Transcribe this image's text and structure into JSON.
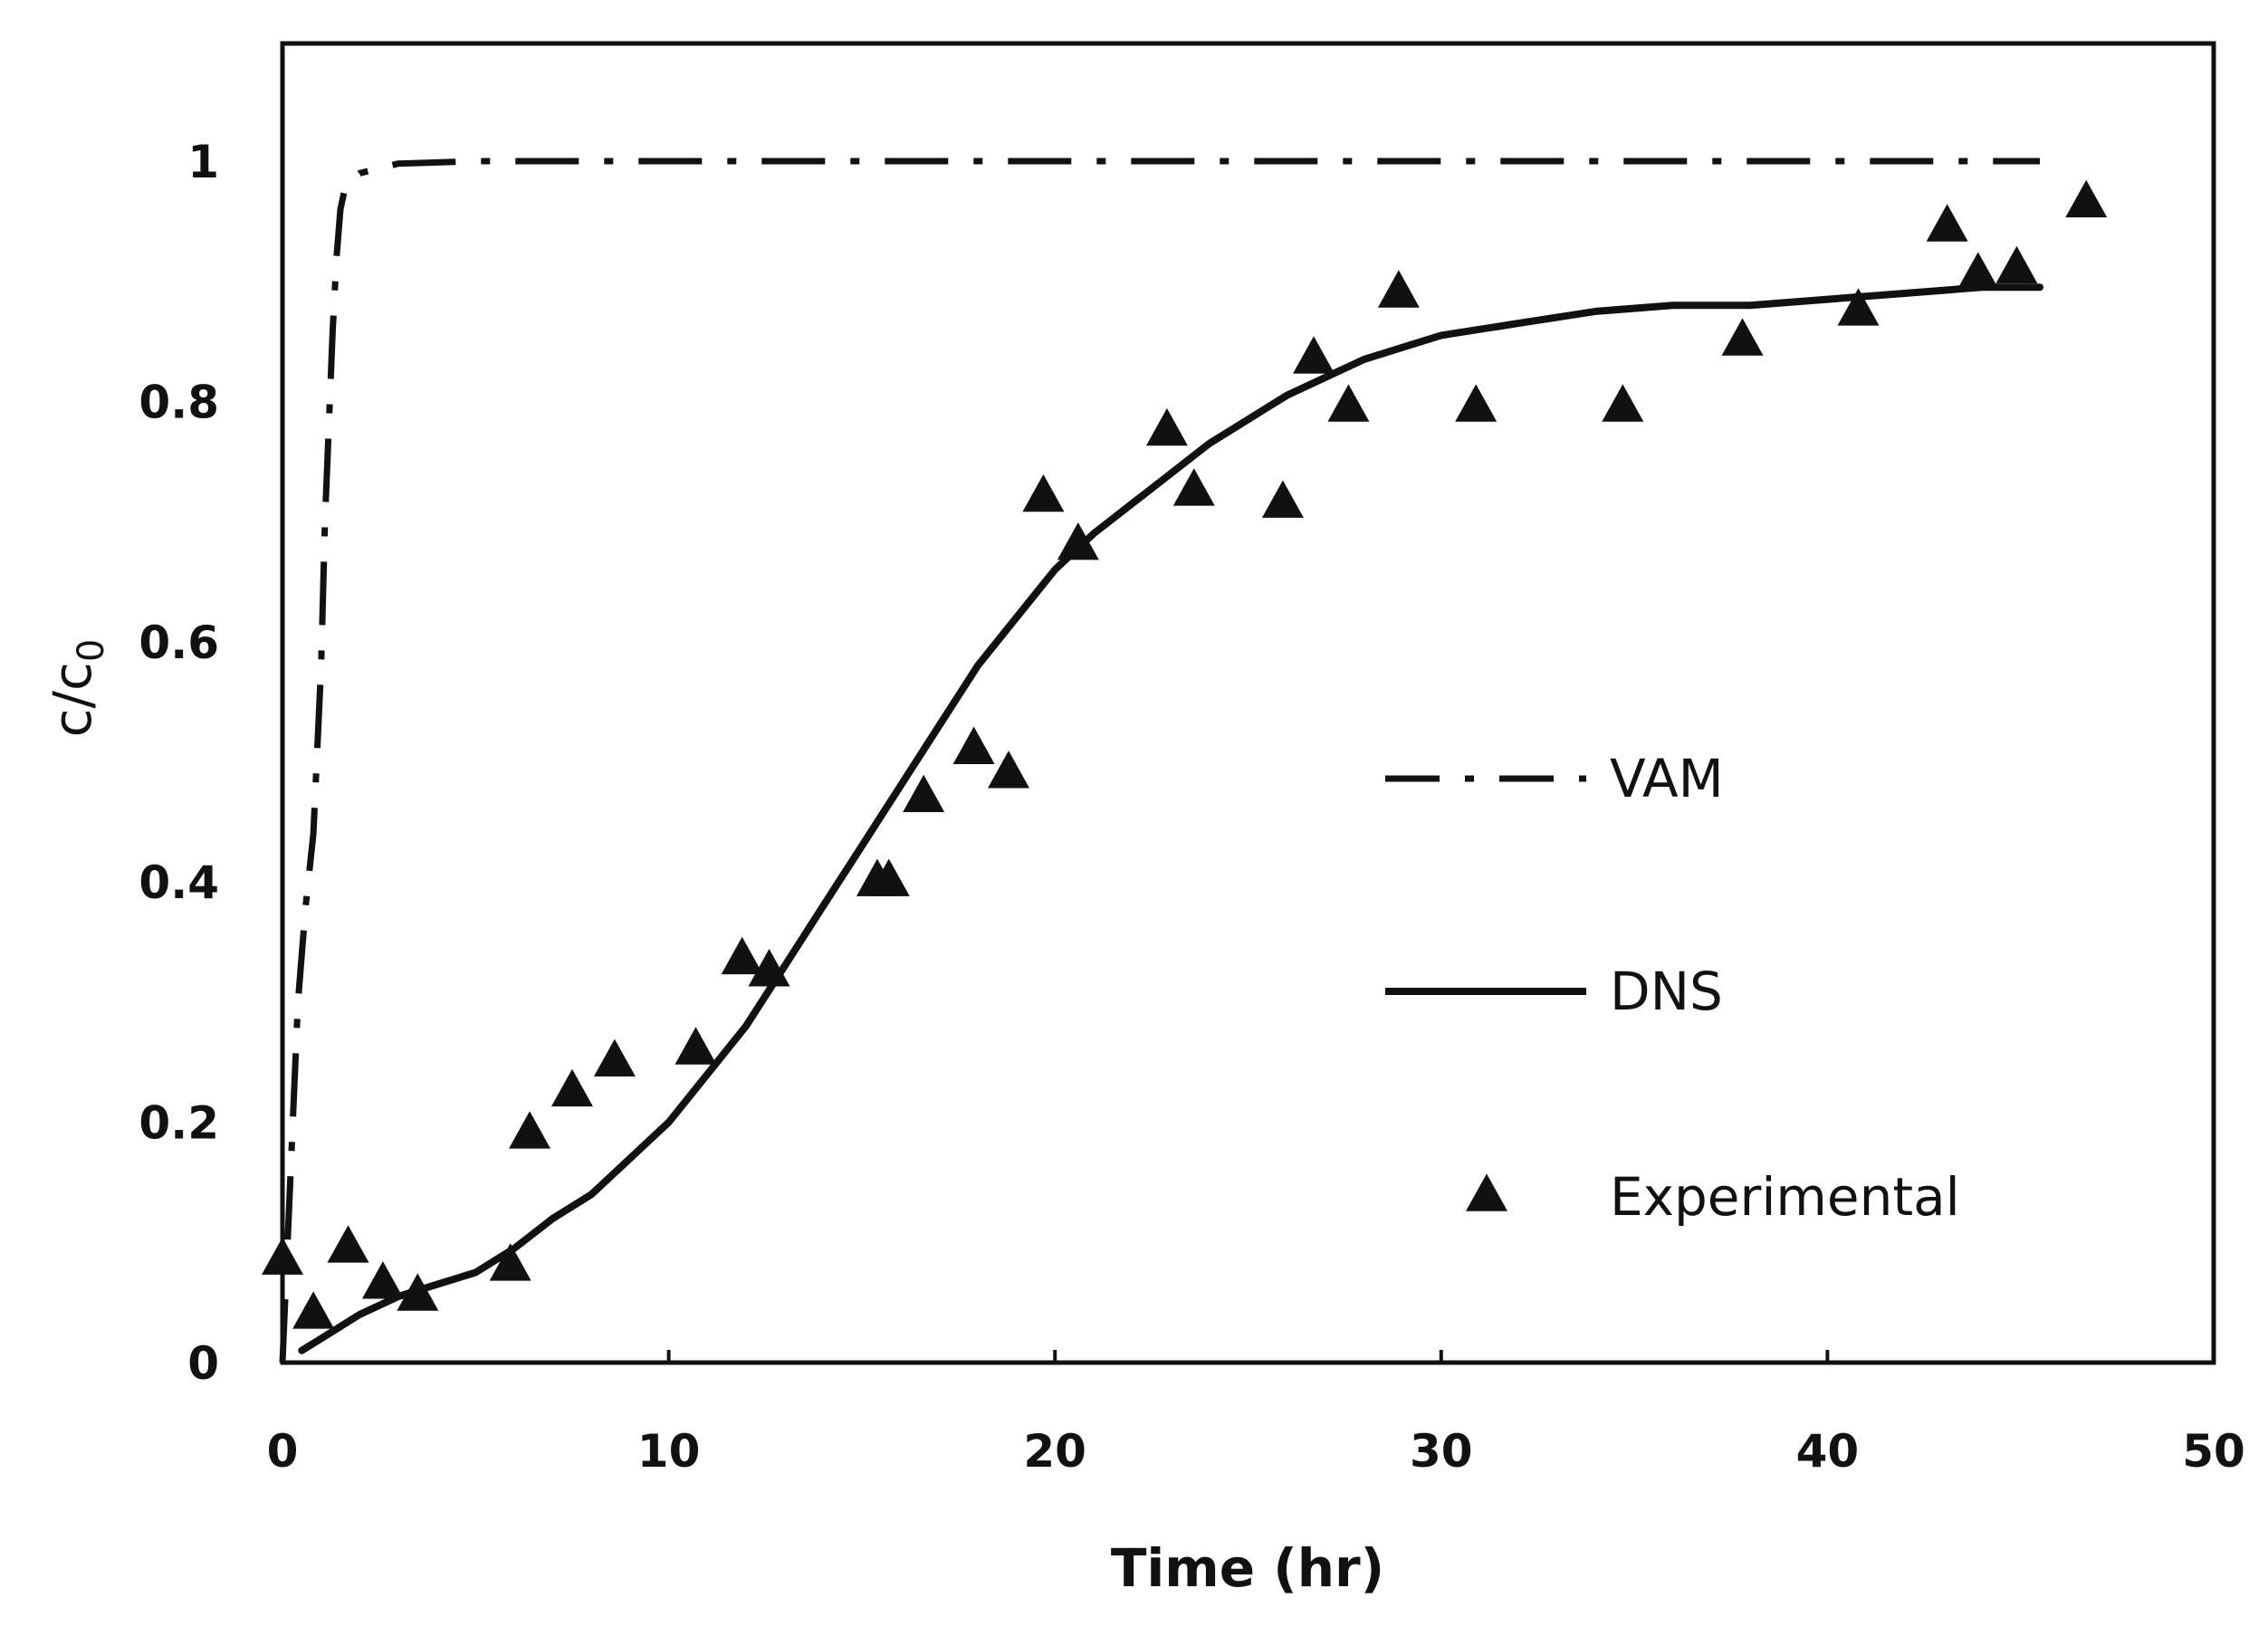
{
  "chart_data": {
    "type": "line",
    "title": "",
    "xlabel": "Time (hr)",
    "ylabel": {
      "main": "c/c",
      "sub": "0"
    },
    "xlim": [
      0,
      50
    ],
    "ylim": [
      0,
      1.0
    ],
    "xticks": [
      0,
      10,
      20,
      30,
      40,
      50
    ],
    "yticks": [
      0,
      0.2,
      0.4,
      0.6,
      0.8,
      1
    ],
    "xtick_labels": [
      "0",
      "10",
      "20",
      "30",
      "40",
      "50"
    ],
    "ytick_labels": [
      "0",
      "0.2",
      "0.4",
      "0.6",
      "0.8",
      "1"
    ],
    "grid": false,
    "legend_position": "center-right",
    "series": [
      {
        "name": "VAM",
        "style": "dash-dot",
        "color": "#111111",
        "x": [
          0,
          0.2,
          0.4,
          0.6,
          0.8,
          1.0,
          1.1,
          1.2,
          1.3,
          1.4,
          1.5,
          1.6,
          1.8,
          2.0,
          3.0,
          5.0,
          10,
          20,
          30,
          40,
          45.5
        ],
        "y": [
          0.0,
          0.15,
          0.3,
          0.38,
          0.44,
          0.58,
          0.7,
          0.78,
          0.86,
          0.92,
          0.96,
          0.975,
          0.985,
          0.99,
          0.998,
          1.0,
          1.0,
          1.0,
          1.0,
          1.0,
          1.0
        ]
      },
      {
        "name": "DNS",
        "style": "solid",
        "color": "#111111",
        "x": [
          0.5,
          1,
          2,
          3,
          4,
          5,
          6,
          7,
          8,
          9,
          10,
          11,
          12,
          13,
          14,
          15,
          16,
          17,
          18,
          19,
          20,
          21,
          22,
          23,
          24,
          25,
          26,
          27,
          28,
          29,
          30,
          32,
          34,
          36,
          38,
          40,
          42,
          44,
          45.5
        ],
        "y": [
          0.01,
          0.02,
          0.04,
          0.055,
          0.065,
          0.075,
          0.095,
          0.12,
          0.14,
          0.17,
          0.2,
          0.24,
          0.28,
          0.33,
          0.38,
          0.43,
          0.48,
          0.53,
          0.58,
          0.62,
          0.66,
          0.69,
          0.715,
          0.74,
          0.765,
          0.785,
          0.805,
          0.82,
          0.835,
          0.845,
          0.855,
          0.865,
          0.875,
          0.88,
          0.88,
          0.885,
          0.89,
          0.895,
          0.895
        ]
      },
      {
        "name": "Experimental",
        "style": "triangle-markers",
        "color": "#111111",
        "x": [
          0,
          0.8,
          1.7,
          2.6,
          3.5,
          5.9,
          6.4,
          7.5,
          8.6,
          10.7,
          11.9,
          12.6,
          15.4,
          15.7,
          16.6,
          17.9,
          18.8,
          19.7,
          20.6,
          22.9,
          23.6,
          25.9,
          26.7,
          27.6,
          28.9,
          30.9,
          34.7,
          37.8,
          40.8,
          43.1,
          43.9,
          44.9,
          46.7
        ],
        "y": [
          0.085,
          0.04,
          0.095,
          0.065,
          0.055,
          0.08,
          0.19,
          0.225,
          0.25,
          0.26,
          0.335,
          0.325,
          0.4,
          0.4,
          0.47,
          0.51,
          0.49,
          0.72,
          0.68,
          0.775,
          0.725,
          0.715,
          0.835,
          0.795,
          0.89,
          0.795,
          0.795,
          0.85,
          0.875,
          0.945,
          0.905,
          0.91,
          0.965
        ]
      }
    ],
    "legend": {
      "entries": [
        {
          "label": "VAM",
          "style": "dash-dot"
        },
        {
          "label": "DNS",
          "style": "solid"
        },
        {
          "label": "Experimental",
          "style": "triangle-markers"
        }
      ]
    }
  }
}
